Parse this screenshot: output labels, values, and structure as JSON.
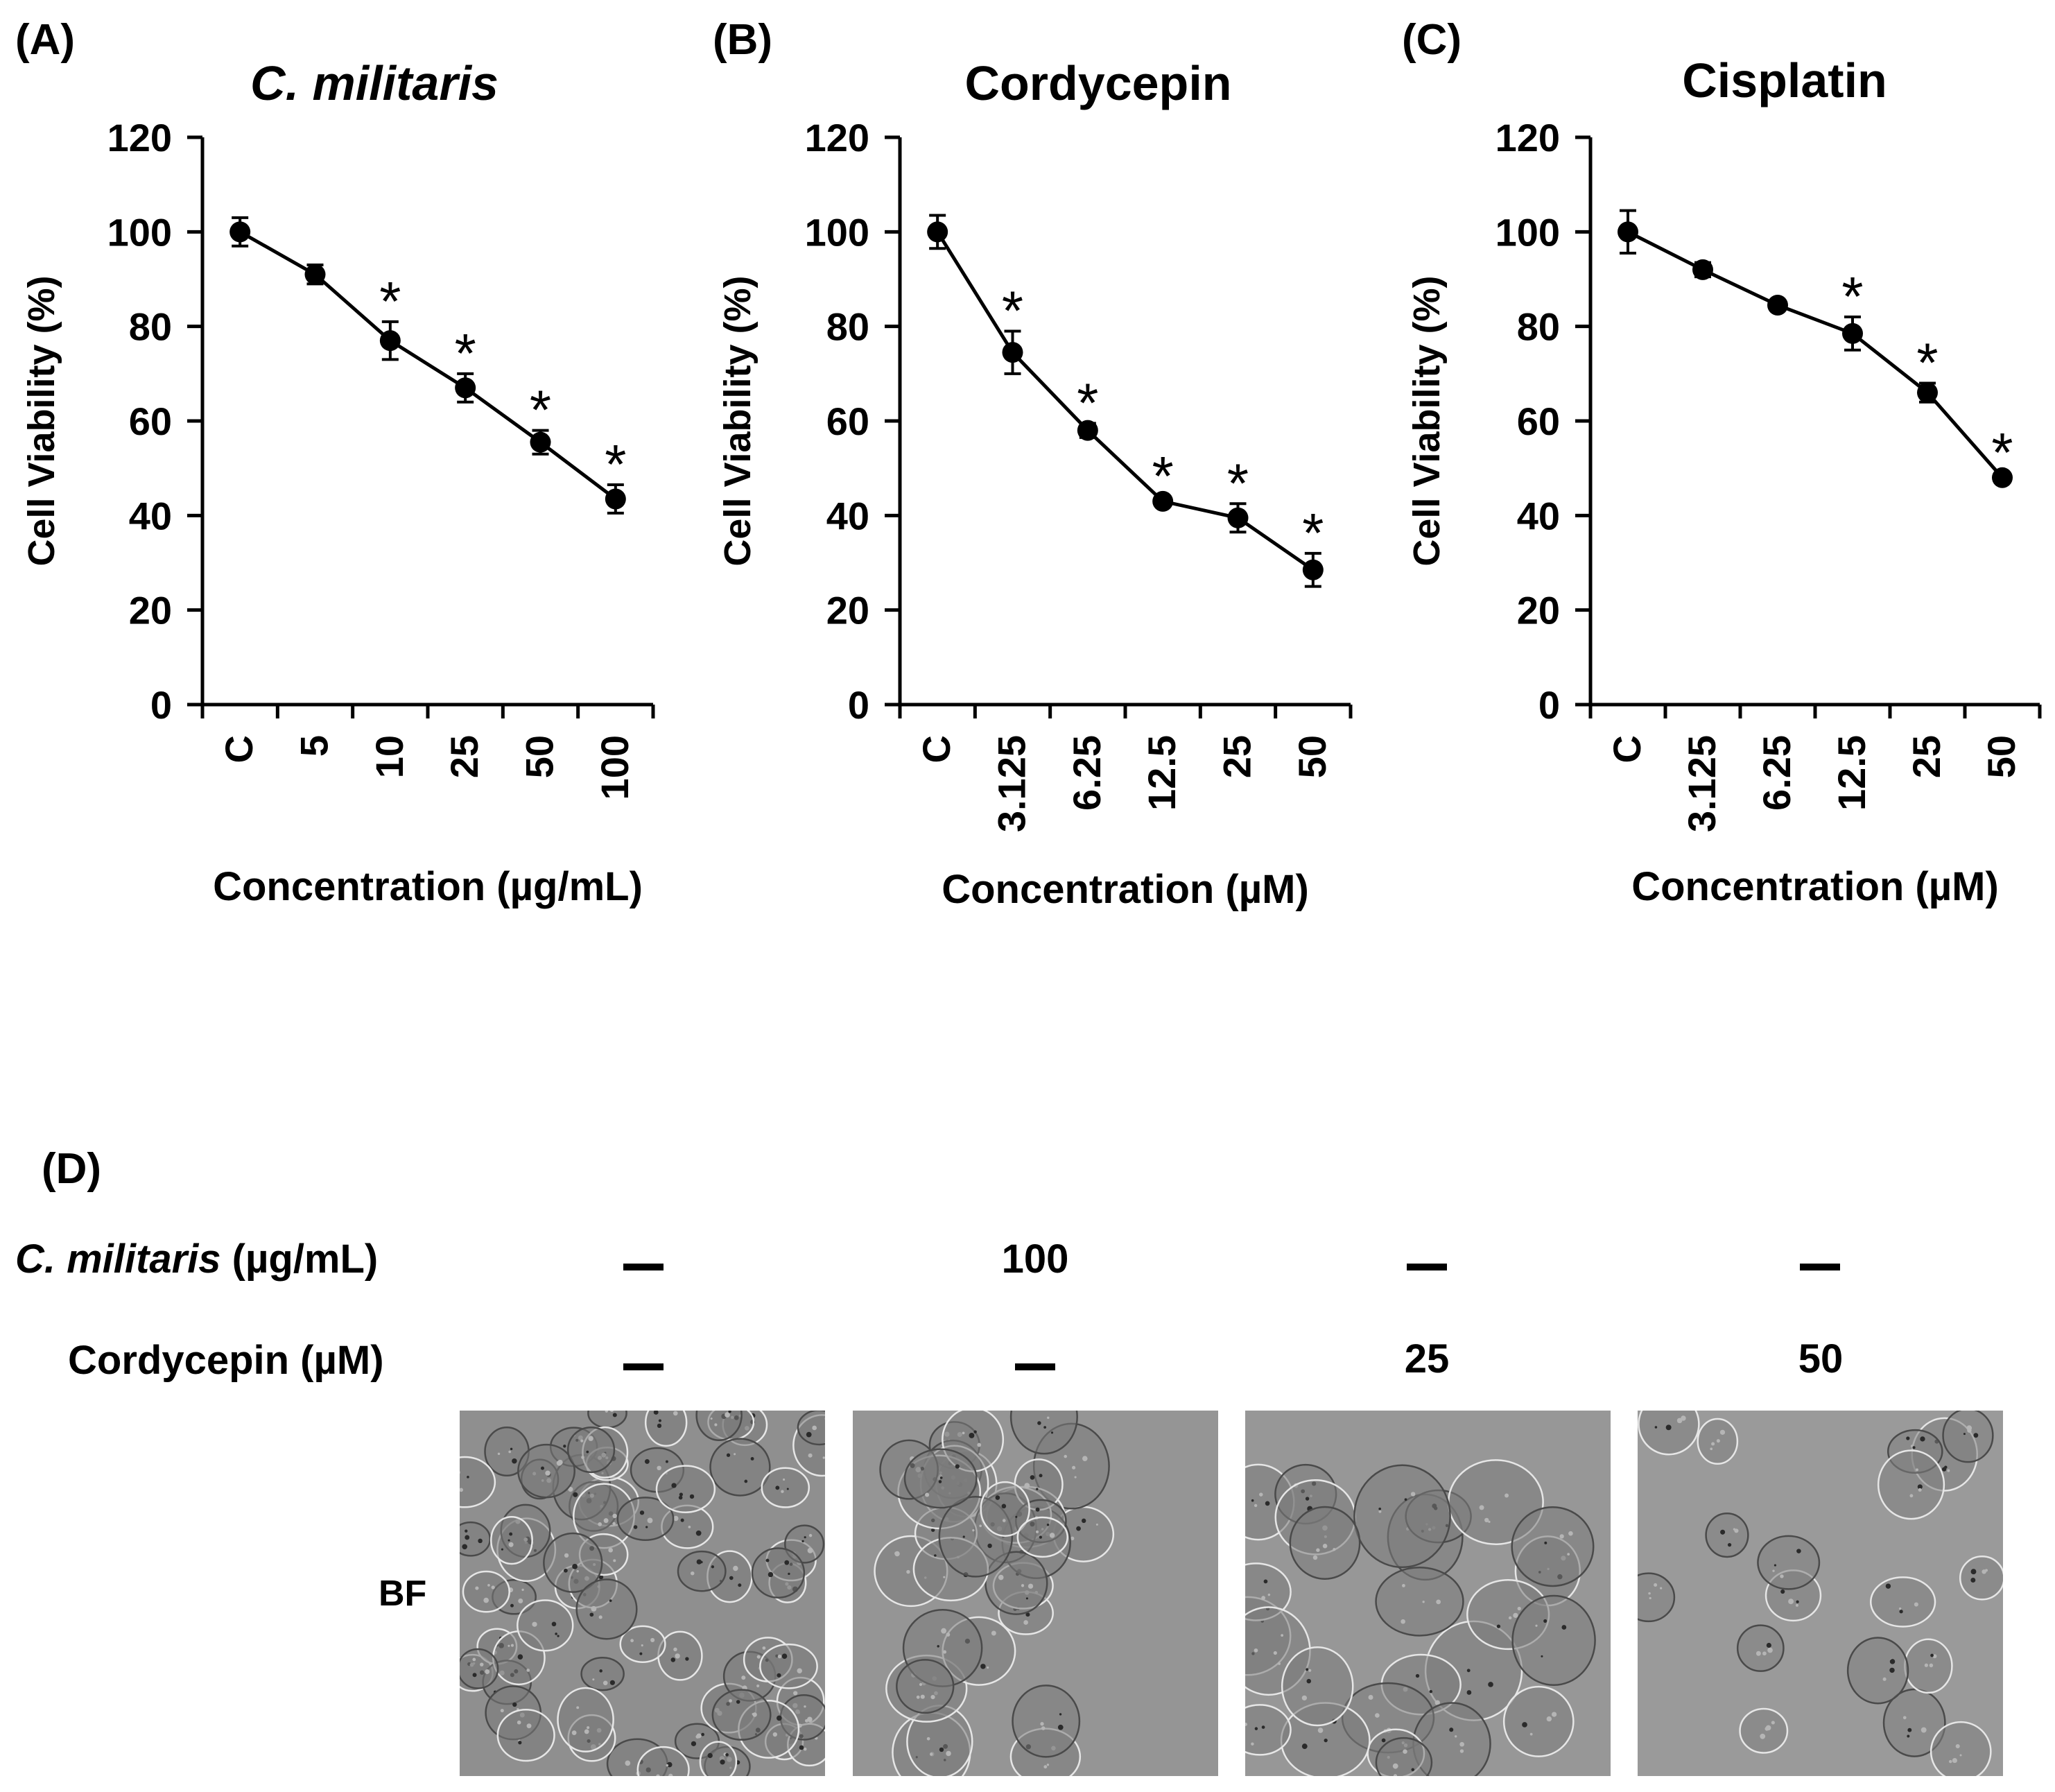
{
  "chart_data": [
    {
      "type": "line",
      "panel": "(A)",
      "title": "C. militaris",
      "title_italic": true,
      "ylabel": "Cell Viability (%)",
      "xlabel": "Concentration (µg/mL)",
      "categories": [
        "C",
        "5",
        "10",
        "25",
        "50",
        "100"
      ],
      "values": [
        100,
        91,
        77,
        67,
        55.5,
        43.5
      ],
      "errors": [
        3,
        2,
        4,
        3,
        2.5,
        3
      ],
      "significant": [
        false,
        false,
        true,
        true,
        true,
        true
      ],
      "ylim": [
        0,
        120
      ],
      "yticks": [
        0,
        20,
        40,
        60,
        80,
        100,
        120
      ]
    },
    {
      "type": "line",
      "panel": "(B)",
      "title": "Cordycepin",
      "title_italic": false,
      "ylabel": "Cell Viability (%)",
      "xlabel": "Concentration (µM)",
      "categories": [
        "C",
        "3.125",
        "6.25",
        "12.5",
        "25",
        "50"
      ],
      "values": [
        100,
        74.5,
        58,
        43,
        39.5,
        28.5
      ],
      "errors": [
        3.5,
        4.5,
        1.5,
        1,
        3,
        3.5
      ],
      "significant": [
        false,
        true,
        true,
        true,
        true,
        true
      ],
      "ylim": [
        0,
        120
      ],
      "yticks": [
        0,
        20,
        40,
        60,
        80,
        100,
        120
      ]
    },
    {
      "type": "line",
      "panel": "(C)",
      "title": "Cisplatin",
      "title_italic": false,
      "ylabel": "Cell Viability (%)",
      "xlabel": "Concentration (µM)",
      "categories": [
        "C",
        "3.125",
        "6.25",
        "12.5",
        "25",
        "50"
      ],
      "values": [
        100,
        92,
        84.5,
        78.5,
        66,
        48
      ],
      "errors": [
        4.5,
        1.5,
        1,
        3.5,
        2,
        1
      ],
      "significant": [
        false,
        false,
        false,
        true,
        true,
        true
      ],
      "ylim": [
        0,
        120
      ],
      "yticks": [
        0,
        20,
        40,
        60,
        80,
        100,
        120
      ]
    }
  ],
  "panel_d": {
    "label": "(D)",
    "rows": [
      {
        "label_italic": "C. militaris",
        "label_rest": " (µg/mL)",
        "values": [
          "—",
          "100",
          "—",
          "—"
        ]
      },
      {
        "label_italic": "",
        "label_rest": "Cordycepin (µM)",
        "values": [
          "—",
          "—",
          "25",
          "50"
        ]
      }
    ],
    "image_row_label": "BF",
    "images": [
      "control",
      "C. militaris 100 µg/mL",
      "Cordycepin 25 µM",
      "Cordycepin 50 µM"
    ]
  },
  "significance_marker": "*"
}
